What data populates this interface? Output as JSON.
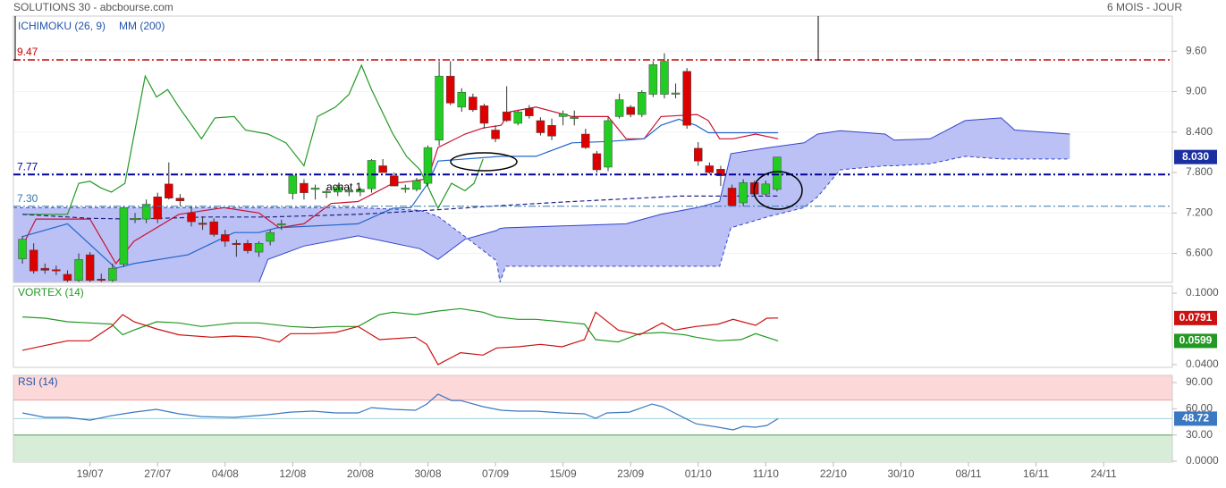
{
  "header": {
    "title": "SOLUTIONS 30 - abcbourse.com",
    "period": "6 MOIS - JOUR"
  },
  "chart_data": [
    {
      "type": "candlestick",
      "legend": [
        "ICHIMOKU (26, 9)",
        "MM (200)"
      ],
      "annotation": "achat 1",
      "up_color": "#22cc22",
      "down_color": "#dd0000",
      "open": [
        6.52,
        6.65,
        6.38,
        6.36,
        6.29,
        6.2,
        6.58,
        6.22,
        6.2,
        6.44,
        7.11,
        7.11,
        7.44,
        7.63,
        7.42,
        7.2,
        7.05,
        7.07,
        6.88,
        6.75,
        6.75,
        6.62,
        6.78,
        7.02,
        7.49,
        7.64,
        7.55,
        7.51,
        7.51,
        7.52,
        7.51,
        7.56,
        7.9,
        7.75,
        7.55,
        7.55,
        7.64,
        8.28,
        9.23,
        8.77,
        8.92,
        8.79,
        8.43,
        8.7,
        8.53,
        8.75,
        8.57,
        8.5,
        8.63,
        8.6,
        8.37,
        8.08,
        7.88,
        8.63,
        8.77,
        8.66,
        8.96,
        8.96,
        8.96,
        9.3,
        8.16,
        7.9,
        7.85,
        7.57,
        7.35,
        7.65,
        7.48,
        7.55
      ],
      "high": [
        6.86,
        6.75,
        6.45,
        6.42,
        6.35,
        6.6,
        6.62,
        6.3,
        6.45,
        7.3,
        7.2,
        7.4,
        7.5,
        7.95,
        7.48,
        7.3,
        7.15,
        7.12,
        6.95,
        6.8,
        6.8,
        6.78,
        6.95,
        7.1,
        7.78,
        7.7,
        7.62,
        7.56,
        7.62,
        7.58,
        7.58,
        8.0,
        8.0,
        7.8,
        7.62,
        7.72,
        8.2,
        9.45,
        9.45,
        9.05,
        8.97,
        8.82,
        8.5,
        9.08,
        8.72,
        8.8,
        8.62,
        8.6,
        8.72,
        8.72,
        8.45,
        8.12,
        8.62,
        8.97,
        8.8,
        9.02,
        9.45,
        9.57,
        9.12,
        9.35,
        8.25,
        7.95,
        7.9,
        7.62,
        7.7,
        7.68,
        7.68,
        8.03
      ],
      "low": [
        6.45,
        6.3,
        6.3,
        6.28,
        6.15,
        6.15,
        6.15,
        6.15,
        6.15,
        6.4,
        7.05,
        7.05,
        7.05,
        7.4,
        7.3,
        7.0,
        6.95,
        6.85,
        6.7,
        6.55,
        6.6,
        6.55,
        6.72,
        6.95,
        7.4,
        7.4,
        7.4,
        7.42,
        7.45,
        7.45,
        7.45,
        7.5,
        7.8,
        7.6,
        7.5,
        7.52,
        7.6,
        8.2,
        8.8,
        8.7,
        8.7,
        8.45,
        8.25,
        8.55,
        8.5,
        8.6,
        8.35,
        8.28,
        8.5,
        8.5,
        8.15,
        7.8,
        7.82,
        8.6,
        8.62,
        8.62,
        8.92,
        8.9,
        8.9,
        8.45,
        7.9,
        7.78,
        7.6,
        7.3,
        7.3,
        7.45,
        7.45,
        7.52
      ],
      "close": [
        6.81,
        6.34,
        6.35,
        6.34,
        6.2,
        6.51,
        6.2,
        6.2,
        6.38,
        7.28,
        7.12,
        7.33,
        7.11,
        7.42,
        7.38,
        7.07,
        7.04,
        6.88,
        6.78,
        6.74,
        6.64,
        6.75,
        6.91,
        7.04,
        7.75,
        7.5,
        7.57,
        7.52,
        7.58,
        7.53,
        7.55,
        7.98,
        7.8,
        7.6,
        7.57,
        7.68,
        8.17,
        9.23,
        8.83,
        8.99,
        8.73,
        8.53,
        8.3,
        8.57,
        8.7,
        8.64,
        8.39,
        8.34,
        8.67,
        8.62,
        8.17,
        7.84,
        8.57,
        8.88,
        8.66,
        8.99,
        9.4,
        9.45,
        8.98,
        8.5,
        7.97,
        7.8,
        7.75,
        7.31,
        7.65,
        7.48,
        7.63,
        8.03
      ],
      "cloud": {
        "color": "#aab0f2",
        "line_color": "#3344cc",
        "x": [
          -0.8,
          9.1,
          21.0,
          21.8,
          25.0,
          29.8,
          35.3,
          36.9,
          39.3,
          42.1,
          42.4,
          42.9,
          53.6,
          56.7,
          59.9,
          61.9,
          62.9,
          66.3,
          69.4,
          70.6,
          72.6,
          76.6,
          77.4,
          80.6,
          83.7,
          86.9,
          88.1,
          93.0
        ],
        "span_a": [
          7.28,
          7.28,
          7.28,
          7.28,
          7.28,
          7.28,
          7.24,
          7.15,
          6.85,
          6.49,
          6.17,
          6.41,
          6.41,
          6.41,
          6.41,
          6.41,
          6.98,
          7.15,
          7.28,
          7.44,
          7.84,
          7.9,
          7.9,
          7.93,
          8.04,
          8.0,
          8.0,
          8.0
        ],
        "span_b": [
          6.17,
          6.17,
          6.17,
          6.51,
          6.71,
          6.86,
          6.67,
          6.51,
          6.81,
          6.94,
          6.97,
          6.98,
          7.04,
          7.18,
          7.28,
          7.37,
          8.08,
          8.17,
          8.24,
          8.37,
          8.42,
          8.37,
          8.28,
          8.3,
          8.57,
          8.61,
          8.43,
          8.37
        ]
      },
      "lines": [
        {
          "color": "#cc1133",
          "dash": "none",
          "x": [
            0,
            1.2,
            6.0,
            8.3,
            9.9,
            13.9,
            17.9,
            21.0,
            22.8,
            25.0,
            27.4,
            29.8,
            32.9,
            34.5,
            36.0,
            36.9,
            39.3,
            40.9,
            42.5,
            43.3,
            45.6,
            48.8,
            52.0,
            53.6,
            55.2,
            56.7,
            59.9,
            60.9,
            61.9,
            63.1,
            65.1,
            67.1
          ],
          "values": [
            6.71,
            7.11,
            7.11,
            6.45,
            6.78,
            7.18,
            7.28,
            7.2,
            6.98,
            7.04,
            7.34,
            7.37,
            7.64,
            7.67,
            7.71,
            8.17,
            8.37,
            8.46,
            8.5,
            8.7,
            8.77,
            8.63,
            8.63,
            8.3,
            8.3,
            8.63,
            8.66,
            8.57,
            8.3,
            8.3,
            8.37,
            8.3
          ]
        },
        {
          "color": "#2266cc",
          "dash": "none",
          "x": [
            0,
            4.0,
            8.3,
            9.9,
            14.7,
            18.8,
            21.0,
            22.6,
            25.0,
            29.8,
            32.9,
            34.5,
            36.0,
            36.9,
            42.5,
            45.6,
            48.8,
            52.0,
            55.2,
            56.7,
            58.3,
            59.8,
            60.9,
            63.1,
            67.1
          ],
          "values": [
            6.85,
            7.04,
            6.38,
            6.45,
            6.58,
            6.91,
            6.91,
            6.98,
            7.0,
            7.04,
            7.27,
            7.28,
            7.64,
            7.97,
            8.04,
            8.04,
            8.24,
            8.26,
            8.3,
            8.5,
            8.59,
            8.5,
            8.39,
            8.39,
            8.39
          ]
        },
        {
          "color": "#229922",
          "dash": "none",
          "x": [
            0,
            4.0,
            5.0,
            6.0,
            7.0,
            7.9,
            9.1,
            10.9,
            11.9,
            12.9,
            13.9,
            15.9,
            17.1,
            18.8,
            19.8,
            21.8,
            23.4,
            25.0,
            26.2,
            27.8,
            29.0,
            30.1,
            31.0,
            32.9,
            34.1,
            35.3,
            36.9,
            38.1,
            39.3,
            40.1,
            40.9
          ],
          "values": [
            7.18,
            7.18,
            7.64,
            7.67,
            7.57,
            7.51,
            7.64,
            9.23,
            8.92,
            9.03,
            8.77,
            8.3,
            8.61,
            8.63,
            8.43,
            8.37,
            8.24,
            7.9,
            8.63,
            8.77,
            8.96,
            9.39,
            9.03,
            8.37,
            8.04,
            7.84,
            7.27,
            7.64,
            7.53,
            7.64,
            8.0
          ]
        },
        {
          "color": "#222288",
          "dash": "5 3",
          "x": [
            0,
            6.0,
            9.9,
            16.3,
            21.8,
            29.8,
            36.1,
            42.5,
            48.8,
            53.6,
            58.3,
            63.1,
            67.1
          ],
          "values": [
            7.18,
            7.12,
            7.11,
            7.14,
            7.14,
            7.18,
            7.24,
            7.31,
            7.37,
            7.41,
            7.45,
            7.45,
            7.45
          ]
        }
      ],
      "levels": [
        {
          "value": 9.47,
          "label": "9.47",
          "color": "#cc0000",
          "width": 1.5
        },
        {
          "value": 7.77,
          "label": "7.77",
          "color": "#000099",
          "width": 2
        },
        {
          "value": 7.3,
          "label": "7.30",
          "color": "#3377aa",
          "width": 1
        }
      ],
      "last_price": {
        "value": 8.03,
        "label": "8.030",
        "color": "#1a2fa0"
      },
      "xlim": [
        -0.8,
        102.1
      ],
      "xticks": [
        {
          "value": 6,
          "label": "19/07"
        },
        {
          "value": 12,
          "label": "27/07"
        },
        {
          "value": 18,
          "label": "04/08"
        },
        {
          "value": 24,
          "label": "12/08"
        },
        {
          "value": 30,
          "label": "20/08"
        },
        {
          "value": 36,
          "label": "30/08"
        },
        {
          "value": 42,
          "label": "07/09"
        },
        {
          "value": 48,
          "label": "15/09"
        },
        {
          "value": 54,
          "label": "23/09"
        },
        {
          "value": 60,
          "label": "01/10"
        },
        {
          "value": 66,
          "label": "11/10"
        },
        {
          "value": 72,
          "label": "22/10"
        },
        {
          "value": 78,
          "label": "30/10"
        },
        {
          "value": 84,
          "label": "08/11"
        },
        {
          "value": 90,
          "label": "16/11"
        },
        {
          "value": 96,
          "label": "24/11"
        }
      ],
      "ylim": [
        6.17,
        10.12
      ],
      "yticks": [
        {
          "value": 9.6,
          "label": "9.60"
        },
        {
          "value": 9.0,
          "label": "9.00"
        },
        {
          "value": 8.4,
          "label": "8.400"
        },
        {
          "value": 7.8,
          "label": "7.800"
        },
        {
          "value": 7.2,
          "label": "7.200"
        },
        {
          "value": 6.6,
          "label": "6.600"
        }
      ],
      "grid": true
    },
    {
      "type": "line",
      "title": "VORTEX (14)",
      "ylim": [
        0.0377,
        0.106
      ],
      "yticks": [
        {
          "value": 0.1,
          "label": "0.1000"
        },
        {
          "value": 0.04,
          "label": "0.0400"
        }
      ],
      "series": [
        {
          "color": "#229922",
          "x": [
            0,
            2.0,
            4.0,
            6.0,
            7.9,
            8.9,
            9.9,
            11.9,
            13.9,
            15.9,
            18.8,
            21.0,
            23.8,
            25.8,
            27.8,
            29.8,
            31.7,
            32.9,
            34.9,
            36.9,
            38.9,
            40.9,
            42.1,
            44.0,
            45.6,
            47.9,
            49.9,
            50.9,
            52.9,
            54.8,
            56.8,
            58.8,
            59.8,
            61.8,
            63.8,
            65.1,
            67.1
          ],
          "values": [
            0.08,
            0.079,
            0.076,
            0.075,
            0.074,
            0.065,
            0.069,
            0.076,
            0.075,
            0.072,
            0.075,
            0.075,
            0.072,
            0.071,
            0.072,
            0.072,
            0.082,
            0.084,
            0.082,
            0.085,
            0.087,
            0.084,
            0.08,
            0.078,
            0.078,
            0.076,
            0.074,
            0.061,
            0.059,
            0.066,
            0.067,
            0.065,
            0.063,
            0.06,
            0.061,
            0.066,
            0.0599
          ]
        },
        {
          "color": "#cc1111",
          "x": [
            0,
            2.0,
            4.0,
            6.0,
            7.9,
            8.9,
            9.9,
            11.9,
            13.9,
            16.8,
            18.8,
            21.0,
            22.8,
            23.8,
            25.8,
            27.8,
            29.8,
            31.7,
            34.9,
            35.9,
            36.9,
            38.9,
            40.9,
            42.1,
            44.0,
            46.0,
            47.9,
            49.9,
            50.9,
            52.9,
            54.8,
            56.8,
            57.9,
            59.8,
            61.8,
            63.1,
            65.1,
            66.1,
            67.1
          ],
          "values": [
            0.052,
            0.056,
            0.06,
            0.06,
            0.072,
            0.082,
            0.076,
            0.07,
            0.065,
            0.063,
            0.064,
            0.063,
            0.059,
            0.066,
            0.066,
            0.067,
            0.072,
            0.061,
            0.063,
            0.057,
            0.04,
            0.05,
            0.048,
            0.054,
            0.055,
            0.057,
            0.055,
            0.061,
            0.084,
            0.069,
            0.065,
            0.075,
            0.069,
            0.072,
            0.074,
            0.078,
            0.073,
            0.079,
            0.0791
          ]
        }
      ]
    },
    {
      "type": "line",
      "title": "RSI (14)",
      "ylim": [
        -1,
        98.2
      ],
      "yticks": [
        {
          "value": 0,
          "label": "0.0000"
        },
        {
          "value": 30,
          "label": "30.00"
        },
        {
          "value": 60,
          "label": "60.00"
        },
        {
          "value": 90,
          "label": "90.00"
        }
      ],
      "zones": [
        {
          "from": 70,
          "to": 100,
          "color": "#fdd8d8",
          "line": "#f0a0a0"
        },
        {
          "from": 0,
          "to": 30,
          "color": "#d8edd8",
          "line": "#559955"
        }
      ],
      "series": [
        {
          "color": "#3b78c2",
          "x": [
            0,
            2.0,
            4.0,
            6.0,
            7.9,
            9.9,
            11.9,
            13.9,
            15.9,
            18.8,
            21.8,
            23.8,
            25.8,
            27.8,
            29.8,
            31.0,
            32.9,
            34.9,
            35.9,
            36.9,
            38.1,
            38.9,
            40.9,
            42.5,
            44.0,
            45.6,
            47.9,
            49.9,
            50.9,
            51.9,
            53.9,
            55.9,
            56.8,
            57.9,
            59.8,
            61.8,
            63.1,
            64.0,
            65.1,
            66.1,
            67.1
          ],
          "values": [
            55.2,
            50.1,
            50.1,
            47.0,
            52.1,
            56.2,
            59.3,
            54.2,
            51.1,
            50.1,
            53.2,
            56.2,
            57.3,
            55.2,
            55.2,
            61.3,
            59.3,
            58.3,
            65.4,
            76.7,
            69.5,
            69.5,
            62.4,
            58.3,
            57.3,
            57.3,
            55.2,
            54.2,
            49.1,
            55.2,
            56.2,
            65.4,
            62.4,
            55.2,
            42.9,
            38.9,
            35.8,
            39.9,
            38.9,
            40.9,
            48.72
          ]
        }
      ]
    }
  ]
}
